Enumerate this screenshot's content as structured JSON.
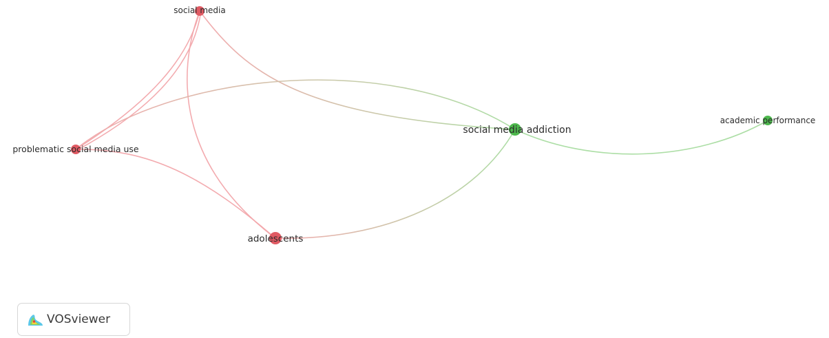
{
  "network": {
    "nodes": [
      {
        "id": "sm",
        "label": "social media",
        "cluster": "red"
      },
      {
        "id": "psmu",
        "label": "problematic social media use",
        "cluster": "red"
      },
      {
        "id": "ado",
        "label": "adolescents",
        "cluster": "red"
      },
      {
        "id": "sma",
        "label": "social media addiction",
        "cluster": "green"
      },
      {
        "id": "ap",
        "label": "academic performance",
        "cluster": "green"
      }
    ],
    "links": [
      {
        "from": "sm",
        "to": "psmu"
      },
      {
        "from": "sm",
        "to": "ado"
      },
      {
        "from": "sm",
        "to": "sma"
      },
      {
        "from": "psmu",
        "to": "ado"
      },
      {
        "from": "psmu",
        "to": "sma"
      },
      {
        "from": "ado",
        "to": "sma"
      },
      {
        "from": "sma",
        "to": "ap"
      }
    ],
    "colors": {
      "red": "#e05a63",
      "green": "#4cb84c",
      "red_link": "#f2a7ab",
      "green_link": "#a8dca0"
    }
  },
  "badge": {
    "label": "VOSviewer",
    "logo_icon": "vosviewer-logo-icon"
  }
}
